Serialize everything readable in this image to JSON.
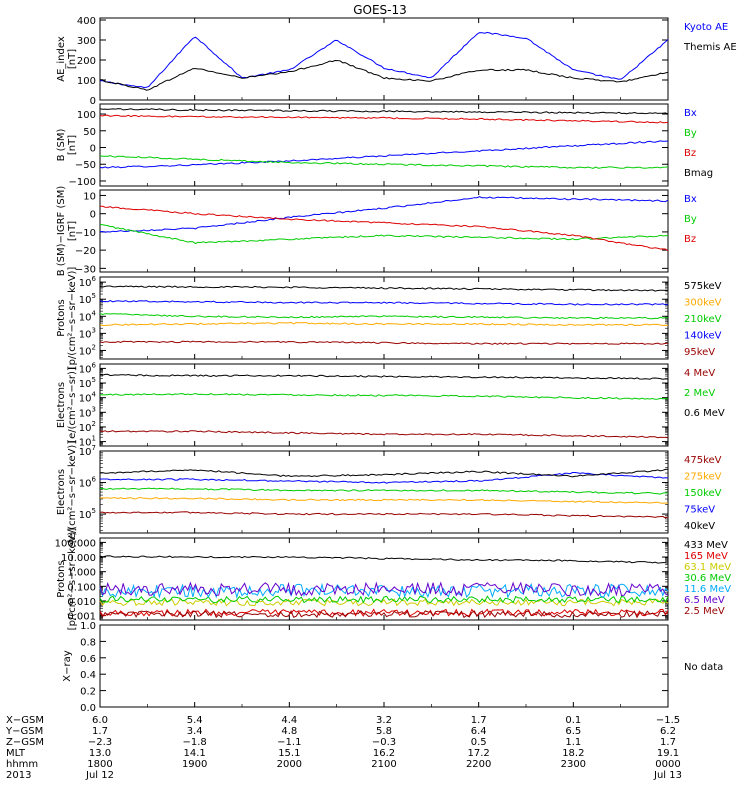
{
  "title": "GOES-13",
  "colors": {
    "black": "#000000",
    "blue": "#0000ff",
    "green": "#00cc00",
    "red": "#dd0000",
    "orange": "#ffaa00",
    "dark_red": "#990000",
    "yellow": "#cccc00",
    "cyan": "#00aaff",
    "purple": "#6600cc"
  },
  "chart_data": [
    {
      "type": "line",
      "ylabel": "AE_index\n[nT]",
      "ylim": [
        0,
        410
      ],
      "yticks": [
        0,
        100,
        200,
        300,
        400
      ],
      "yticklabels": [
        "0",
        "100",
        "200",
        "300",
        "400"
      ],
      "x": [
        "1800",
        "1830",
        "1900",
        "1930",
        "2000",
        "2030",
        "2100",
        "2130",
        "2200",
        "2230",
        "2300",
        "2330",
        "0000"
      ],
      "series": [
        {
          "name": "Kyoto AE",
          "color": "#0000ff",
          "values": [
            95,
            60,
            320,
            110,
            150,
            300,
            160,
            110,
            340,
            310,
            150,
            100,
            300
          ]
        },
        {
          "name": "Themis AE",
          "color": "#000000",
          "values": [
            100,
            50,
            160,
            110,
            140,
            200,
            110,
            95,
            150,
            150,
            110,
            90,
            140
          ]
        }
      ]
    },
    {
      "type": "line",
      "ylabel": "B (SM)\n[nT]",
      "ylim": [
        -115,
        130
      ],
      "yticks": [
        -100,
        -50,
        0,
        50,
        100
      ],
      "yticklabels": [
        "−100",
        "−50",
        "0",
        "50",
        "100"
      ],
      "x": [
        "1800",
        "1900",
        "2000",
        "2100",
        "2200",
        "2300",
        "0000"
      ],
      "series": [
        {
          "name": "Bx",
          "color": "#0000ff",
          "values": [
            -60,
            -52,
            -40,
            -25,
            -10,
            5,
            20
          ]
        },
        {
          "name": "By",
          "color": "#00cc00",
          "values": [
            -25,
            -35,
            -45,
            -50,
            -55,
            -60,
            -60
          ]
        },
        {
          "name": "Bz",
          "color": "#dd0000",
          "values": [
            95,
            92,
            90,
            88,
            85,
            80,
            75
          ]
        },
        {
          "name": "Bmag",
          "color": "#000000",
          "values": [
            115,
            112,
            110,
            108,
            106,
            104,
            102
          ]
        }
      ]
    },
    {
      "type": "line",
      "ylabel": "B (SM)−IGRF (SM)\n[nT]",
      "ylim": [
        -32,
        13
      ],
      "yticks": [
        -30,
        -20,
        -10,
        0,
        10
      ],
      "yticklabels": [
        "−30",
        "−20",
        "−10",
        "0",
        "10"
      ],
      "x": [
        "1800",
        "1900",
        "2000",
        "2100",
        "2200",
        "2300",
        "0000"
      ],
      "series": [
        {
          "name": "Bx",
          "color": "#0000ff",
          "values": [
            -10,
            -8,
            -2,
            3,
            9,
            8,
            7
          ]
        },
        {
          "name": "By",
          "color": "#00cc00",
          "values": [
            -6,
            -16,
            -14,
            -12,
            -13,
            -14,
            -12
          ]
        },
        {
          "name": "Bz",
          "color": "#dd0000",
          "values": [
            4,
            0,
            -3,
            -5,
            -7,
            -12,
            -20
          ]
        }
      ]
    },
    {
      "type": "line",
      "ylabel": "Protons\n[p/(cm²−s−sr−keV)]",
      "log": true,
      "ylim_exp": [
        1.5,
        6.3
      ],
      "yticks_exp": [
        2,
        3,
        4,
        5,
        6
      ],
      "x": [
        "1800",
        "1900",
        "2000",
        "2100",
        "2200",
        "2300",
        "0000"
      ],
      "series": [
        {
          "name": "575keV",
          "color": "#000000",
          "values_exp": [
            5.75,
            5.72,
            5.7,
            5.65,
            5.6,
            5.55,
            5.5
          ]
        },
        {
          "name": "300keV",
          "color": "#ffaa00",
          "values_exp": [
            3.5,
            3.55,
            3.6,
            3.55,
            3.55,
            3.5,
            3.5
          ]
        },
        {
          "name": "210keV",
          "color": "#00cc00",
          "values_exp": [
            4.15,
            4.0,
            3.95,
            4.0,
            3.95,
            3.9,
            3.9
          ]
        },
        {
          "name": "140keV",
          "color": "#0000ff",
          "values_exp": [
            4.9,
            4.85,
            4.8,
            4.8,
            4.75,
            4.7,
            4.7
          ]
        },
        {
          "name": "95keV",
          "color": "#990000",
          "values_exp": [
            2.5,
            2.5,
            2.5,
            2.45,
            2.4,
            2.4,
            2.4
          ]
        }
      ]
    },
    {
      "type": "line",
      "ylabel": "Electrons\n[e/(cm²−s−sr)]",
      "log": true,
      "ylim_exp": [
        0.7,
        6.3
      ],
      "yticks_exp": [
        1,
        2,
        3,
        4,
        5,
        6
      ],
      "x": [
        "1800",
        "1900",
        "2000",
        "2100",
        "2200",
        "2300",
        "0000"
      ],
      "series": [
        {
          "name": "4 MeV",
          "color": "#990000",
          "values_exp": [
            1.7,
            1.7,
            1.6,
            1.5,
            1.5,
            1.4,
            1.3
          ]
        },
        {
          "name": "2 MeV",
          "color": "#00cc00",
          "values_exp": [
            4.2,
            4.25,
            4.2,
            4.15,
            4.1,
            4.0,
            3.9
          ]
        },
        {
          "name": "0.6 MeV",
          "color": "#000000",
          "values_exp": [
            5.55,
            5.5,
            5.5,
            5.45,
            5.4,
            5.35,
            5.3
          ]
        }
      ]
    },
    {
      "type": "line",
      "ylabel": "Electrons\n[e/(cm²−s−sr−keV)]",
      "log": true,
      "ylim_exp": [
        4.4,
        7.0
      ],
      "yticks_exp": [
        5,
        6,
        7
      ],
      "x": [
        "1800",
        "1900",
        "2000",
        "2100",
        "2200",
        "2300",
        "0000"
      ],
      "series": [
        {
          "name": "475keV",
          "color": "#990000",
          "values_exp": [
            5.05,
            5.05,
            5.0,
            5.0,
            5.0,
            4.95,
            4.9
          ]
        },
        {
          "name": "275keV",
          "color": "#ffaa00",
          "values_exp": [
            5.5,
            5.5,
            5.45,
            5.45,
            5.45,
            5.4,
            5.35
          ]
        },
        {
          "name": "150keV",
          "color": "#00cc00",
          "values_exp": [
            5.8,
            5.8,
            5.75,
            5.75,
            5.75,
            5.7,
            5.65
          ]
        },
        {
          "name": "75keV",
          "color": "#0000ff",
          "values_exp": [
            6.1,
            6.1,
            6.05,
            6.0,
            6.05,
            6.3,
            6.15
          ]
        },
        {
          "name": "40keV",
          "color": "#000000",
          "values_exp": [
            6.3,
            6.4,
            6.2,
            6.25,
            6.35,
            6.2,
            6.4
          ]
        }
      ]
    },
    {
      "type": "line",
      "ylabel": "Protons\n[p/(cm²−s−sr−keV)]",
      "log": true,
      "ylim_exp": [
        -3.3,
        2.3
      ],
      "yticks_exp": [
        -3,
        -2,
        -1,
        0,
        1,
        2
      ],
      "yticklabels": [
        "0.001",
        "0.010",
        "0.100",
        "1.000",
        "10.000",
        "100.000"
      ],
      "x": [
        "1800",
        "1900",
        "2000",
        "2100",
        "2200",
        "2300",
        "0000"
      ],
      "series": [
        {
          "name": "433 MeV",
          "color": "#000000",
          "values_exp": [
            1.05,
            1.0,
            1.0,
            0.9,
            0.8,
            0.75,
            0.6
          ]
        },
        {
          "name": "165 MeV",
          "color": "#dd0000",
          "values_exp": [
            -2.8,
            -2.8,
            -2.8,
            -2.8,
            -2.8,
            -2.8,
            -2.8
          ]
        },
        {
          "name": "63.1 MeV",
          "color": "#cccc00",
          "values_exp": [
            -2.1,
            -2.1,
            -2.1,
            -2.1,
            -2.1,
            -2.1,
            -2.1
          ]
        },
        {
          "name": "30.6 MeV",
          "color": "#00cc00",
          "values_exp": [
            -1.9,
            -1.9,
            -1.9,
            -1.9,
            -1.9,
            -1.9,
            -1.9
          ]
        },
        {
          "name": "11.6 MeV",
          "color": "#00aaff",
          "values_exp": [
            -1.3,
            -1.3,
            -1.3,
            -1.3,
            -1.3,
            -1.3,
            -1.3
          ]
        },
        {
          "name": "6.5 MeV",
          "color": "#6600cc",
          "values_exp": [
            -1.2,
            -1.2,
            -1.2,
            -1.2,
            -1.2,
            -1.2,
            -1.2
          ]
        },
        {
          "name": "2.5 MeV",
          "color": "#990000",
          "values_exp": [
            -2.9,
            -2.9,
            -2.9,
            -2.9,
            -2.9,
            -2.9,
            -2.9
          ]
        }
      ]
    },
    {
      "type": "line",
      "ylabel": "X−ray",
      "ylim": [
        0,
        1
      ],
      "yticks": [
        0,
        0.2,
        0.4,
        0.6,
        0.8,
        1.0
      ],
      "yticklabels": [
        "0.0",
        "0.2",
        "0.4",
        "0.6",
        "0.8",
        "1.0"
      ],
      "series": [],
      "note": "No data"
    }
  ],
  "ephemeris": {
    "rows": [
      {
        "label": "X−GSM",
        "values": [
          "6.0",
          "5.4",
          "4.4",
          "3.2",
          "1.7",
          "0.1",
          "−1.5"
        ]
      },
      {
        "label": "Y−GSM",
        "values": [
          "1.7",
          "3.4",
          "4.8",
          "5.8",
          "6.4",
          "6.5",
          "6.2"
        ]
      },
      {
        "label": "Z−GSM",
        "values": [
          "−2.3",
          "−1.8",
          "−1.1",
          "−0.3",
          "0.5",
          "1.1",
          "1.7"
        ]
      },
      {
        "label": "MLT",
        "values": [
          "13.0",
          "14.1",
          "15.1",
          "16.2",
          "17.2",
          "18.2",
          "19.1"
        ]
      },
      {
        "label": "hhmm",
        "values": [
          "1800",
          "1900",
          "2000",
          "2100",
          "2200",
          "2300",
          "0000"
        ]
      },
      {
        "label": "2013",
        "values": [
          "Jul 12",
          "",
          "",
          "",
          "",
          "",
          "Jul 13"
        ]
      }
    ]
  }
}
